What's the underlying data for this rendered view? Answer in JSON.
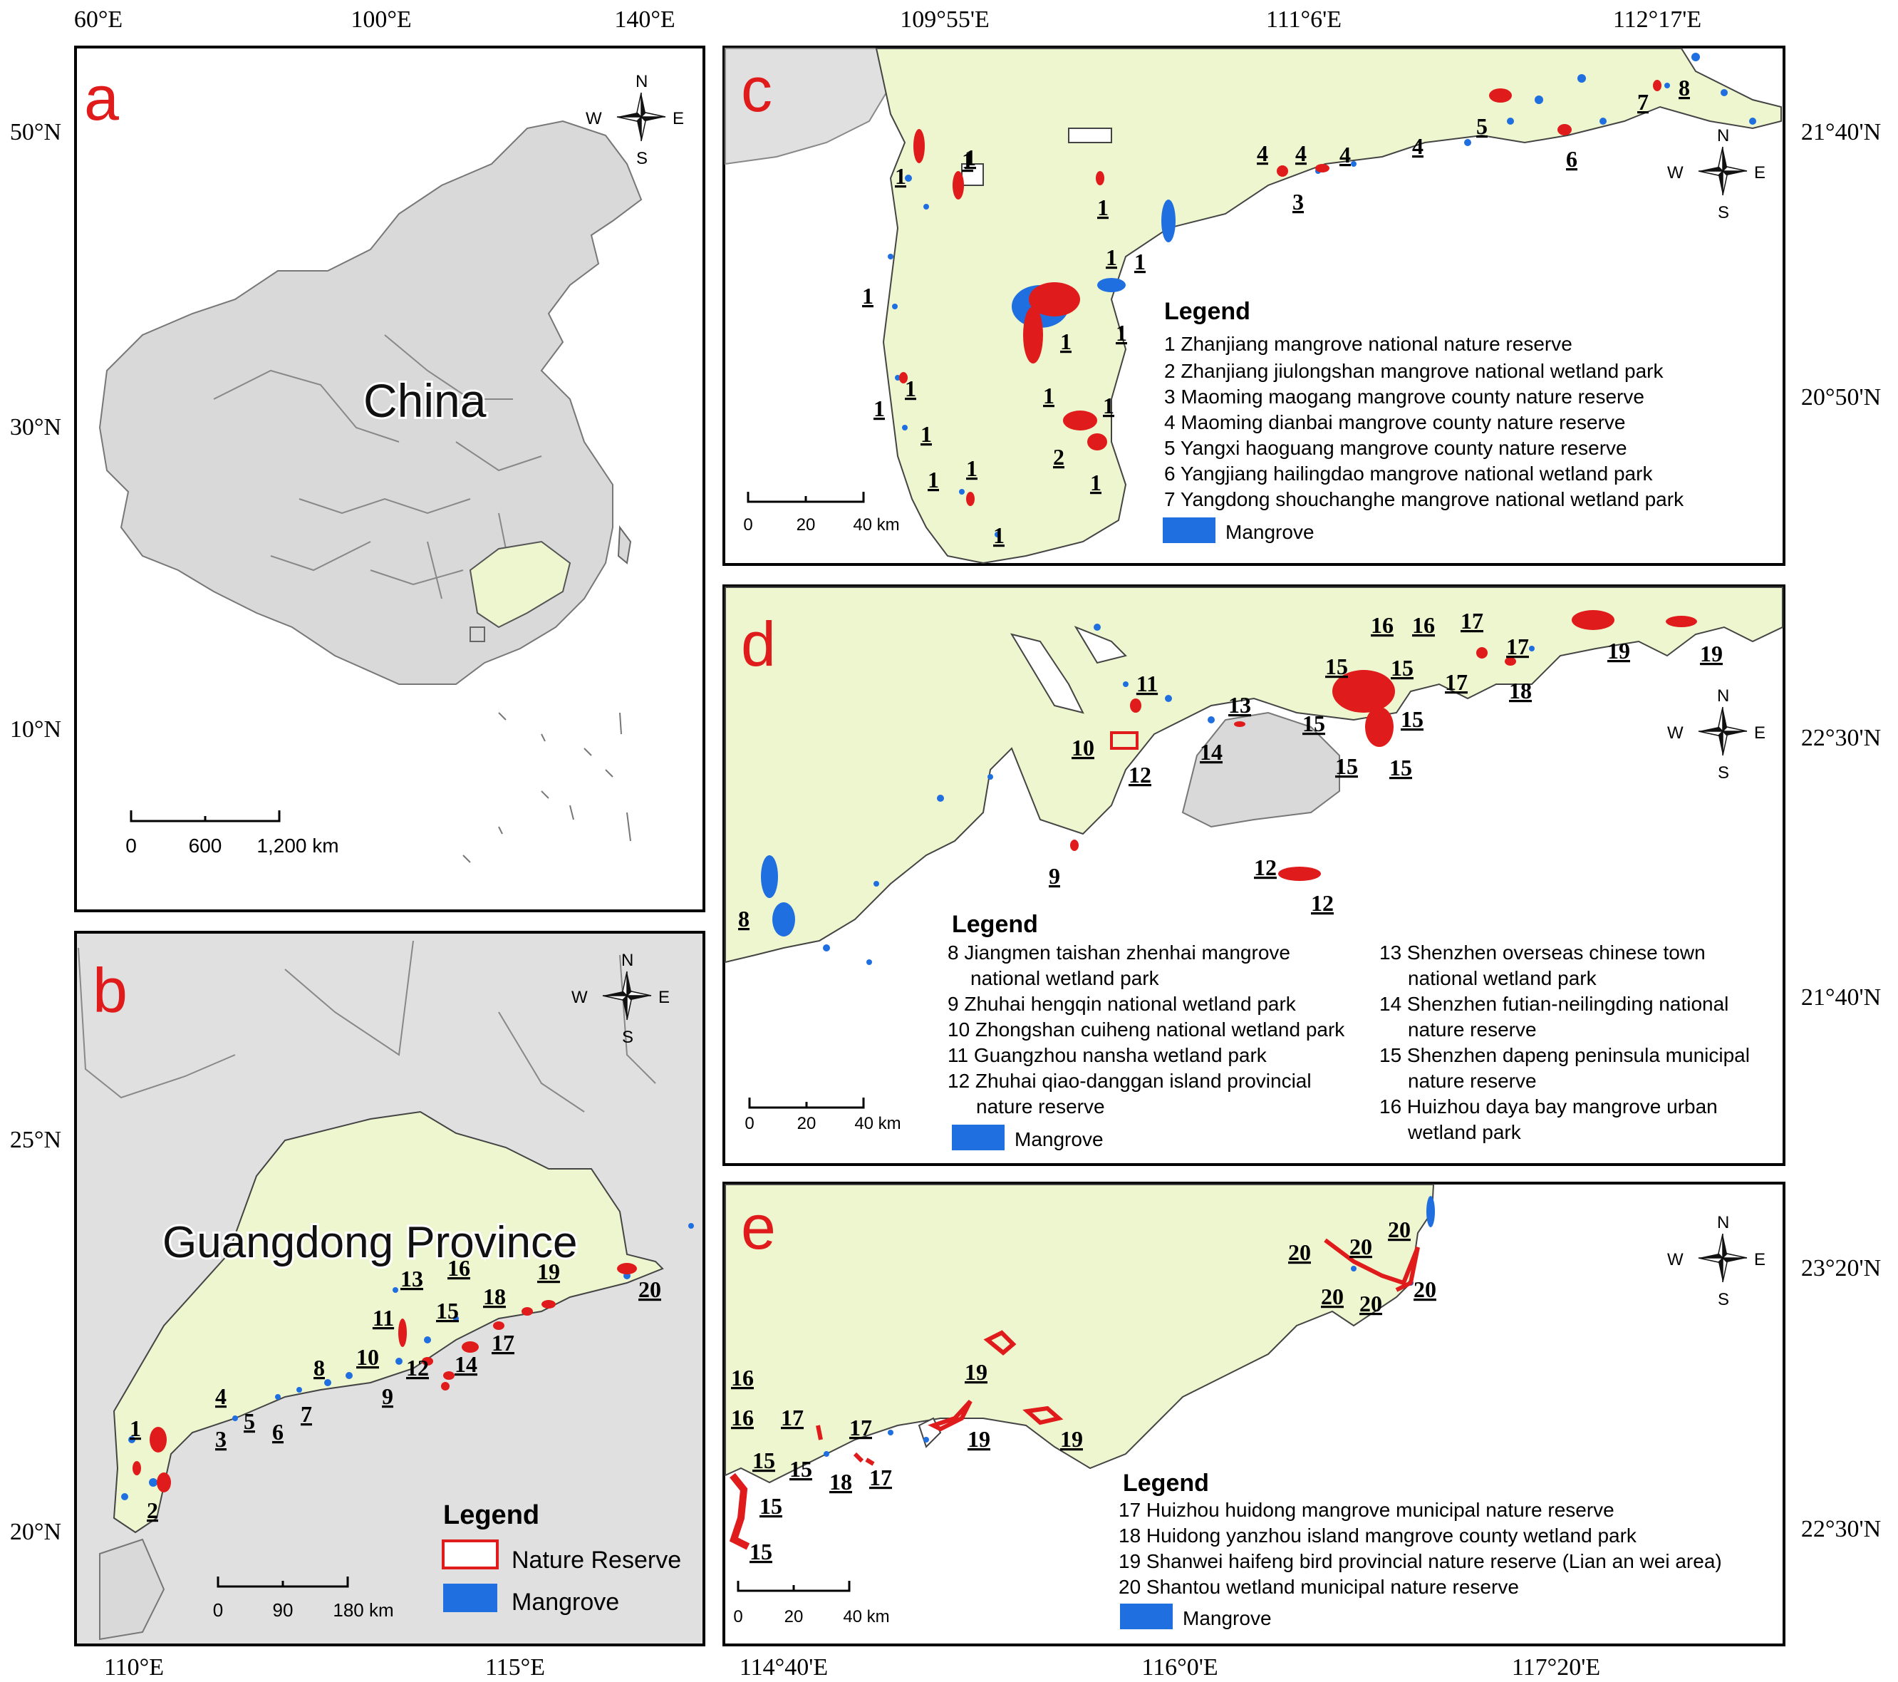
{
  "panels": {
    "a": {
      "label": "a",
      "place_label": "China",
      "top_ticks": [
        "60°E",
        "100°E",
        "140°E"
      ],
      "left_ticks": [
        "50°N",
        "30°N",
        "10°N"
      ],
      "scale": [
        "0",
        "600",
        "1,200 km"
      ]
    },
    "b": {
      "label": "b",
      "place_label": "Guangdong Province",
      "left_ticks": [
        "25°N",
        "20°N"
      ],
      "bottom_ticks": [
        "110°E",
        "115°E"
      ],
      "scale": [
        "0",
        "90",
        "180 km"
      ],
      "legend_title": "Legend",
      "legend_items": [
        "Nature Reserve",
        "Mangrove"
      ],
      "site_labels": [
        "1",
        "2",
        "4",
        "3",
        "5",
        "6",
        "7",
        "8",
        "10",
        "9",
        "11",
        "12",
        "13",
        "14",
        "15",
        "16",
        "17",
        "18",
        "19",
        "20"
      ]
    },
    "c": {
      "label": "c",
      "top_ticks": [
        "109°55'E",
        "111°6'E",
        "112°17'E"
      ],
      "right_ticks": [
        "21°40'N",
        "20°50'N"
      ],
      "scale": [
        "0",
        "20",
        "40 km"
      ],
      "legend_title": "Legend",
      "legend_items": [
        "1 Zhanjiang mangrove national nature reserve",
        "2 Zhanjiang jiulongshan mangrove national wetland park",
        "3 Maoming maogang mangrove county nature reserve",
        "4 Maoming dianbai mangrove county nature reserve",
        "5 Yangxi haoguang mangrove county nature reserve",
        "6 Yangjiang hailingdao mangrove national wetland park",
        "7 Yangdong shouchanghe mangrove national wetland park"
      ],
      "mangrove_label": "Mangrove",
      "site_labels": [
        "1",
        "1",
        "1",
        "1",
        "1",
        "1",
        "1",
        "1",
        "1",
        "1",
        "1",
        "1",
        "1",
        "1",
        "1",
        "1",
        "1",
        "1",
        "2",
        "3",
        "4",
        "4",
        "4",
        "4",
        "5",
        "6",
        "7",
        "8"
      ]
    },
    "d": {
      "label": "d",
      "right_ticks": [
        "22°30'N",
        "21°40'N"
      ],
      "scale": [
        "0",
        "20",
        "40 km"
      ],
      "legend_title": "Legend",
      "legend_left": [
        "8  Jiangmen taishan zhenhai mangrove",
        "national wetland park",
        "9  Zhuhai hengqin national wetland park",
        "10 Zhongshan cuiheng national wetland park",
        "11 Guangzhou nansha wetland park",
        "12 Zhuhai qiao-danggan island provincial",
        "nature reserve"
      ],
      "legend_right": [
        "13 Shenzhen overseas chinese town",
        "national wetland park",
        "14 Shenzhen futian-neilingding national",
        "nature reserve",
        "15 Shenzhen dapeng peninsula municipal",
        "nature reserve",
        "16 Huizhou daya bay mangrove urban",
        "wetland park"
      ],
      "mangrove_label": "Mangrove",
      "site_labels": [
        "8",
        "9",
        "10",
        "11",
        "12",
        "12",
        "12",
        "13",
        "14",
        "15",
        "15",
        "15",
        "15",
        "15",
        "15",
        "16",
        "16",
        "17",
        "17",
        "17",
        "18",
        "19",
        "19"
      ]
    },
    "e": {
      "label": "e",
      "right_ticks": [
        "23°20'N",
        "22°30'N"
      ],
      "bottom_ticks": [
        "114°40'E",
        "116°0'E",
        "117°20'E"
      ],
      "scale": [
        "0",
        "20",
        "40 km"
      ],
      "legend_title": "Legend",
      "legend_items": [
        "17 Huizhou huidong mangrove municipal nature reserve",
        "18  Huidong yanzhou island mangrove county wetland park",
        "19  Shanwei haifeng bird provincial nature reserve (Lian an wei area)",
        "20  Shantou wetland municipal nature reserve"
      ],
      "mangrove_label": "Mangrove",
      "site_labels": [
        "16",
        "16",
        "17",
        "17",
        "17",
        "15",
        "15",
        "15",
        "15",
        "18",
        "19",
        "19",
        "19",
        "20",
        "20",
        "20",
        "20",
        "20",
        "20"
      ]
    }
  },
  "compass": {
    "n": "N",
    "s": "S",
    "e": "E",
    "w": "W"
  },
  "colors": {
    "land": "#eef6cf",
    "other_land": "#e0e0e0",
    "mangrove": "#1f6fe0",
    "reserve": "#e01b1b",
    "panel_letter": "#e01b1b"
  }
}
